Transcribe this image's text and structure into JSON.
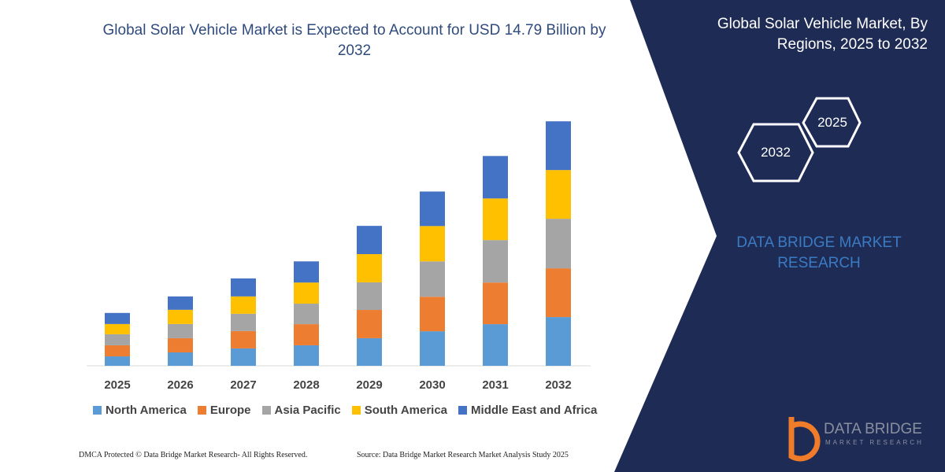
{
  "chart_data": {
    "type": "bar",
    "stacked": true,
    "title": "Global Solar Vehicle Market is Expected to Account for USD 14.79 Billion by 2032",
    "categories": [
      "2025",
      "2026",
      "2027",
      "2028",
      "2029",
      "2030",
      "2031",
      "2032"
    ],
    "series": [
      {
        "name": "North America",
        "color": "#5b9bd5",
        "values": [
          0.57,
          0.81,
          1.05,
          1.24,
          1.67,
          2.09,
          2.52,
          2.95
        ]
      },
      {
        "name": "Europe",
        "color": "#ed7d31",
        "values": [
          0.67,
          0.86,
          1.05,
          1.28,
          1.71,
          2.09,
          2.52,
          2.95
        ]
      },
      {
        "name": "Asia Pacific",
        "color": "#a5a5a5",
        "values": [
          0.67,
          0.86,
          1.05,
          1.24,
          1.67,
          2.14,
          2.57,
          3.0
        ]
      },
      {
        "name": "South America",
        "color": "#ffc000",
        "values": [
          0.62,
          0.86,
          1.05,
          1.28,
          1.71,
          2.14,
          2.52,
          2.95
        ]
      },
      {
        "name": "Middle East and Africa",
        "color": "#4472c4",
        "values": [
          0.67,
          0.81,
          1.09,
          1.28,
          1.71,
          2.09,
          2.57,
          2.95
        ]
      }
    ],
    "ylim": [
      0,
      15
    ]
  },
  "side_panel": {
    "title": "Global Solar Vehicle Market, By Regions, 2025 to 2032",
    "hexagons": [
      "2025",
      "2032"
    ],
    "brand": "DATA BRIDGE MARKET RESEARCH"
  },
  "logo": {
    "name": "DATA BRIDGE",
    "tagline": "MARKET RESEARCH"
  },
  "footer": {
    "left": "DMCA Protected © Data Bridge Market Research- All Rights Reserved.",
    "right": "Source: Data Bridge Market Research Market Analysis Study 2025"
  }
}
